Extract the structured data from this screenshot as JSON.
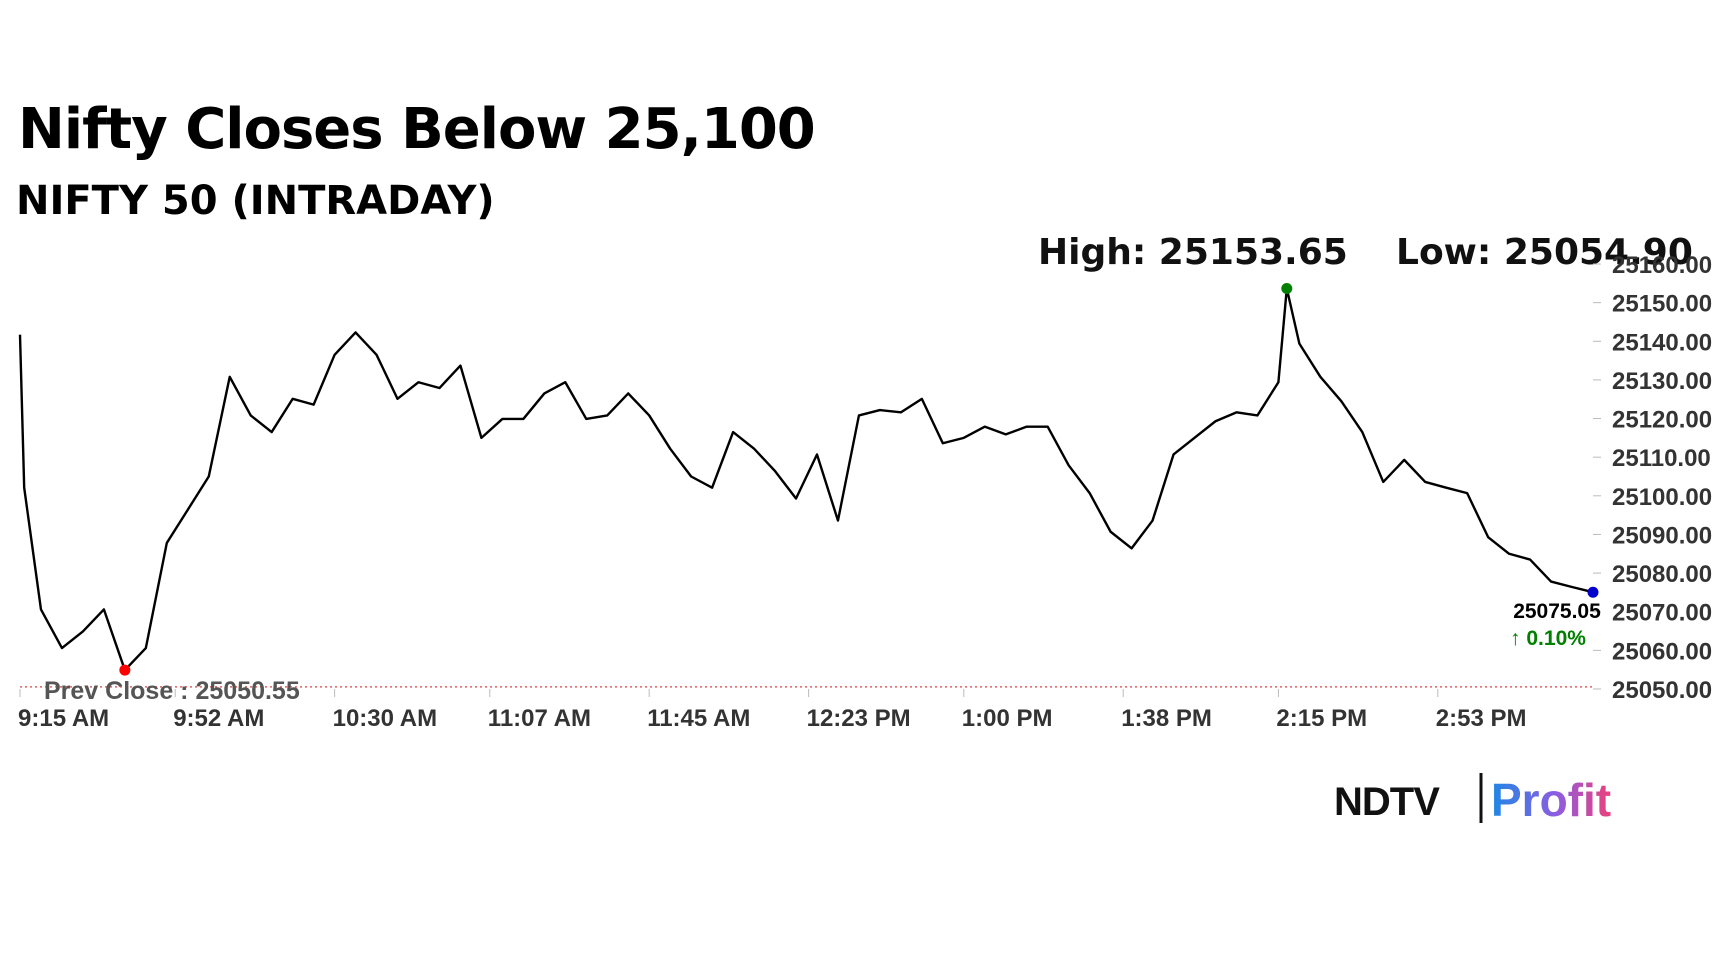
{
  "chart_data": {
    "type": "line",
    "title": "Nifty Closes Below 25,100",
    "subtitle": "NIFTY 50 (INTRADAY)",
    "annotations": {
      "high": "High: 25153.65",
      "low": "Low: 25054.90",
      "prev_close": "Prev Close : 25050.55",
      "change": "↑ 0.10%"
    },
    "prev_close": 25050.55,
    "x": [
      "9:15 AM",
      "9:16 AM",
      "9:20 AM",
      "9:25 AM",
      "9:30 AM",
      "9:35 AM",
      "9:40 AM",
      "9:45 AM",
      "9:50 AM",
      "9:55 AM",
      "10:00 AM",
      "10:05 AM",
      "10:10 AM",
      "10:15 AM",
      "10:20 AM",
      "10:25 AM",
      "10:30 AM",
      "10:35 AM",
      "10:40 AM",
      "10:45 AM",
      "10:50 AM",
      "10:55 AM",
      "11:00 AM",
      "11:05 AM",
      "11:10 AM",
      "11:15 AM",
      "11:20 AM",
      "11:25 AM",
      "11:30 AM",
      "11:35 AM",
      "11:40 AM",
      "11:45 AM",
      "11:50 AM",
      "11:55 AM",
      "12:00 PM",
      "12:05 PM",
      "12:10 PM",
      "12:15 PM",
      "12:20 PM",
      "12:25 PM",
      "12:30 PM",
      "12:35 PM",
      "12:40 PM",
      "12:45 PM",
      "12:50 PM",
      "12:55 PM",
      "1:00 PM",
      "1:05 PM",
      "1:10 PM",
      "1:15 PM",
      "1:20 PM",
      "1:25 PM",
      "1:30 PM",
      "1:35 PM",
      "1:40 PM",
      "1:45 PM",
      "1:50 PM",
      "1:55 PM",
      "2:00 PM",
      "2:05 PM",
      "2:10 PM",
      "2:15 PM",
      "2:17 PM",
      "2:20 PM",
      "2:25 PM",
      "2:30 PM",
      "2:35 PM",
      "2:40 PM",
      "2:45 PM",
      "2:50 PM",
      "2:55 PM",
      "3:00 PM",
      "3:05 PM",
      "3:10 PM",
      "3:15 PM",
      "3:20 PM",
      "3:25 PM",
      "3:30 PM"
    ],
    "series": [
      {
        "name": "NIFTY 50",
        "color": "#000000",
        "values": [
          25141.7,
          25102.1,
          25070.6,
          25060.6,
          25064.9,
          25070.6,
          25054.9,
          25060.6,
          25087.8,
          25096.4,
          25105.0,
          25130.8,
          25120.8,
          25116.5,
          25125.1,
          25123.6,
          25136.5,
          25142.3,
          25136.5,
          25125.1,
          25129.4,
          25127.9,
          25133.7,
          25115.0,
          25119.9,
          25119.9,
          25126.5,
          25129.4,
          25119.9,
          25120.8,
          25126.5,
          25120.8,
          25112.2,
          25105.0,
          25102.1,
          25116.5,
          25112.2,
          25106.4,
          25099.3,
          25110.7,
          25093.6,
          25120.8,
          25122.2,
          25121.6,
          25125.1,
          25113.6,
          25115.0,
          25117.9,
          25115.9,
          25117.9,
          25117.9,
          25107.9,
          25100.7,
          25090.7,
          25086.4,
          25093.6,
          25110.7,
          25115.0,
          25119.3,
          25121.6,
          25120.8,
          25129.4,
          25153.65,
          25139.4,
          25130.8,
          25124.5,
          25116.5,
          25103.6,
          25109.3,
          25103.6,
          25102.1,
          25100.7,
          25089.3,
          25085.0,
          25083.5,
          25077.8,
          25076.4,
          25075.05
        ]
      }
    ],
    "marker_colors": {
      "high": "#008000",
      "low": "#ff0000",
      "last": "#0000cc",
      "prev_close": "#e06060"
    },
    "xlim": [
      "9:15 AM",
      "3:30 PM"
    ],
    "xticks": [
      "9:15 AM",
      "9:52 AM",
      "10:30 AM",
      "11:07 AM",
      "11:45 AM",
      "12:23 PM",
      "1:00 PM",
      "1:38 PM",
      "2:15 PM",
      "2:53 PM"
    ],
    "ylim": [
      25050,
      25160
    ],
    "yticks": [
      {
        "value": 25050,
        "label": "25050.00"
      },
      {
        "value": 25060,
        "label": "25060.00"
      },
      {
        "value": 25070,
        "label": "25070.00"
      },
      {
        "value": 25080,
        "label": "25080.00"
      },
      {
        "value": 25090,
        "label": "25090.00"
      },
      {
        "value": 25100,
        "label": "25100.00"
      },
      {
        "value": 25110,
        "label": "25110.00"
      },
      {
        "value": 25120,
        "label": "25120.00"
      },
      {
        "value": 25130,
        "label": "25130.00"
      },
      {
        "value": 25140,
        "label": "25140.00"
      },
      {
        "value": 25150,
        "label": "25150.00"
      },
      {
        "value": 25160,
        "label": "25160.00"
      }
    ],
    "grid": false
  },
  "logo": {
    "brand": "NDTV",
    "product": "Profit"
  }
}
